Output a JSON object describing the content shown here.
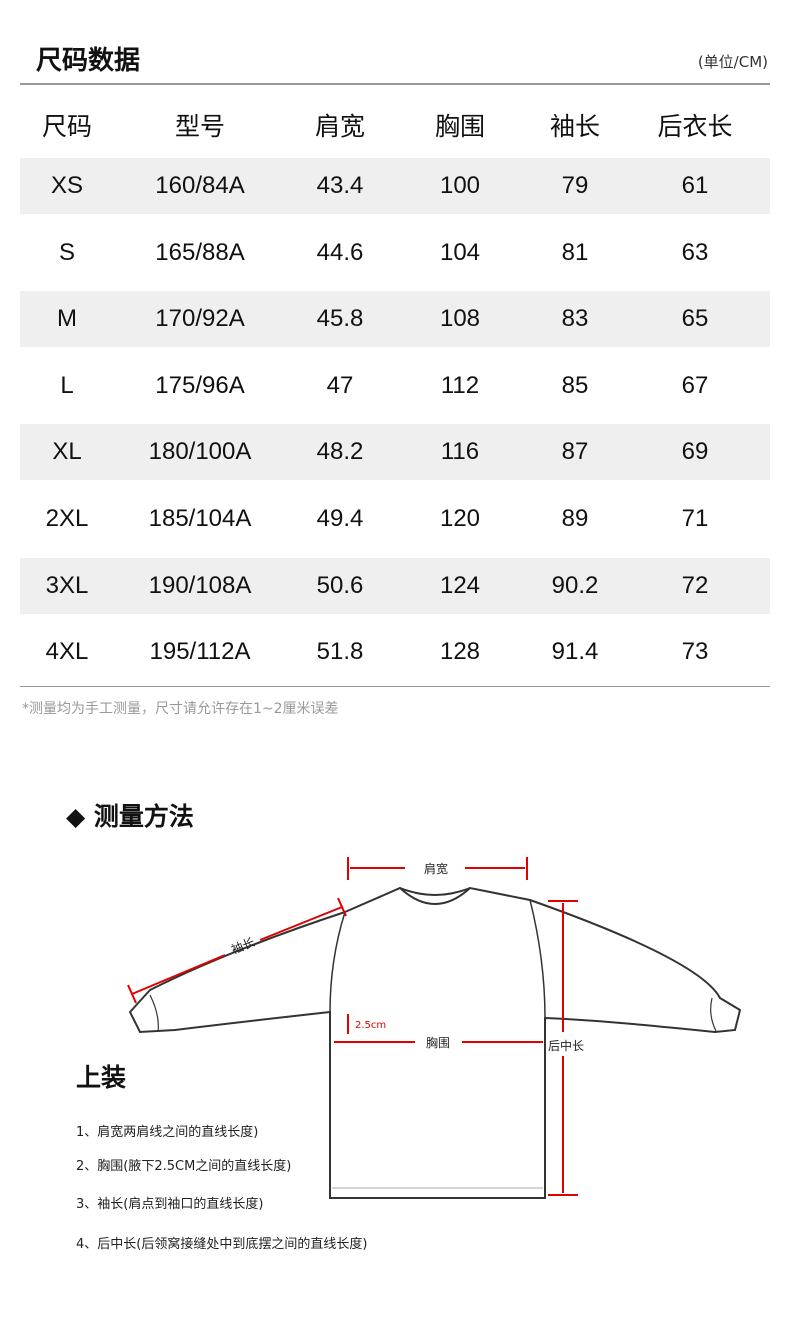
{
  "header": {
    "title": "尺码数据",
    "unit": "(单位/CM)"
  },
  "table": {
    "columns": [
      "尺码",
      "型号",
      "肩宽",
      "胸围",
      "袖长",
      "后衣长"
    ],
    "rows": [
      [
        "XS",
        "160/84A",
        "43.4",
        "100",
        "79",
        "61"
      ],
      [
        "S",
        "165/88A",
        "44.6",
        "104",
        "81",
        "63"
      ],
      [
        "M",
        "170/92A",
        "45.8",
        "108",
        "83",
        "65"
      ],
      [
        "L",
        "175/96A",
        "47",
        "112",
        "85",
        "67"
      ],
      [
        "XL",
        "180/100A",
        "48.2",
        "116",
        "87",
        "69"
      ],
      [
        "2XL",
        "185/104A",
        "49.4",
        "120",
        "89",
        "71"
      ],
      [
        "3XL",
        "190/108A",
        "50.6",
        "124",
        "90.2",
        "72"
      ],
      [
        "4XL",
        "195/112A",
        "51.8",
        "128",
        "91.4",
        "73"
      ]
    ]
  },
  "note": "*测量均为手工测量，尺寸请允许存在1~2厘米误差",
  "method": {
    "title": "◆ 测量方法",
    "category": "上装",
    "diagram_labels": {
      "shoulder": "肩宽",
      "sleeve": "袖长",
      "chest": "胸围",
      "offset": "2.5cm",
      "back_length": "后中长"
    },
    "instructions": [
      "1、肩宽两肩线之间的直线长度)",
      "2、胸围(腋下2.5CM之间的直线长度)",
      "3、袖长(肩点到袖口的直线长度)",
      "4、后中长(后领窝接缝处中到底摆之间的直线长度)"
    ]
  },
  "colors": {
    "accent": "#e00000",
    "row_gray": "#efefef"
  }
}
